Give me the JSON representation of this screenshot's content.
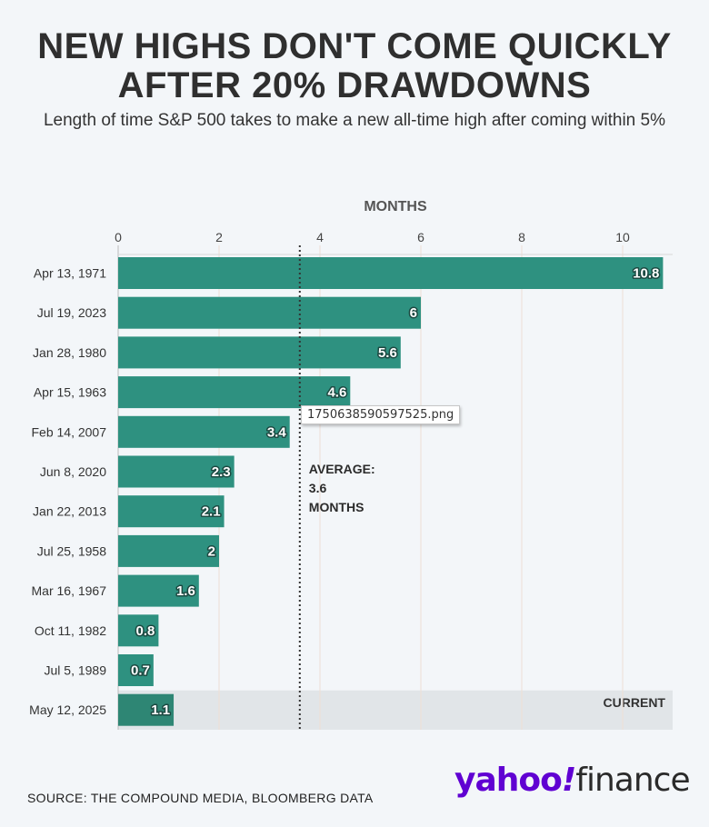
{
  "title_line1": "NEW HIGHS DON'T COME QUICKLY",
  "title_line2": "AFTER 20% DRAWDOWNS",
  "subtitle": "Length of time S&P 500 takes to make a new all-time high after coming within 5%",
  "source": "SOURCE: THE COMPOUND MEDIA, BLOOMBERG DATA",
  "logo": {
    "brand": "yahoo",
    "bang": "!",
    "product": "finance"
  },
  "tooltip_text": "1750638590597525.png",
  "colors": {
    "bar": "#2e9180",
    "bar_current": "#2e8674",
    "current_band": "#e1e5e8",
    "grid": "#eedfd5",
    "average_line": "#333333",
    "text": "#333333"
  },
  "chart_data": {
    "type": "bar",
    "orientation": "horizontal",
    "xlabel": "MONTHS",
    "xlim": [
      0,
      11
    ],
    "xticks": [
      0,
      2,
      4,
      6,
      8,
      10
    ],
    "grid": true,
    "categories": [
      "Apr 13, 1971",
      "Jul 19, 2023",
      "Jan 28, 1980",
      "Apr 15, 1963",
      "Feb 14, 2007",
      "Jun 8, 2020",
      "Jan 22, 2013",
      "Jul 25, 1958",
      "Mar 16, 1967",
      "Oct 11, 1982",
      "Jul 5, 1989",
      "May 12, 2025"
    ],
    "values": [
      10.8,
      6,
      5.6,
      4.6,
      3.4,
      2.3,
      2.1,
      2,
      1.6,
      0.8,
      0.7,
      1.1
    ],
    "value_labels": [
      "10.8",
      "6",
      "5.6",
      "4.6",
      "3.4",
      "2.3",
      "2.1",
      "2",
      "1.6",
      "0.8",
      "0.7",
      "1.1"
    ],
    "highlight": {
      "category": "May 12, 2025",
      "label": "CURRENT"
    },
    "average": {
      "value": 3.6,
      "label_lines": [
        "AVERAGE:",
        "3.6",
        "MONTHS"
      ]
    }
  }
}
